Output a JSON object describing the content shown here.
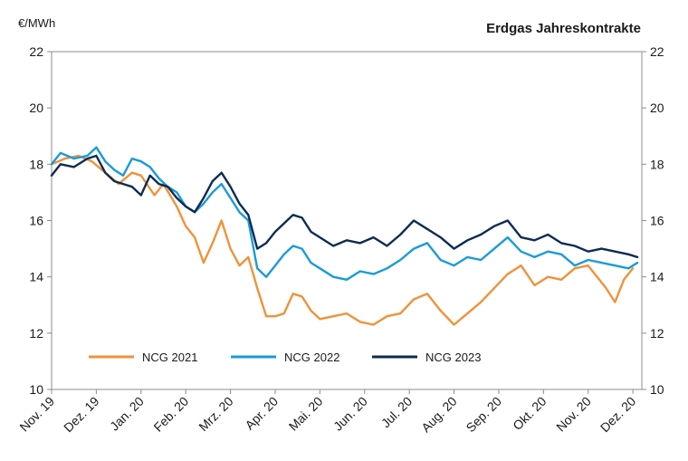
{
  "chart_data": {
    "type": "line",
    "title": "Erdgas Jahreskontrakte",
    "ylabel": "€/MWh",
    "ylim": [
      10,
      22
    ],
    "yticks": [
      10,
      12,
      14,
      16,
      18,
      20,
      22
    ],
    "ytick_labels": [
      "10",
      "12",
      "14",
      "16",
      "18",
      "20",
      "22"
    ],
    "x_range": [
      0,
      13.2
    ],
    "x_ticks": [
      0,
      1,
      2,
      3,
      4,
      5,
      6,
      7,
      8,
      9,
      10,
      11,
      12,
      13
    ],
    "categories": [
      "Nov. 19",
      "Dez. 19",
      "Jan. 20",
      "Feb. 20",
      "Mrz. 20",
      "Apr. 20",
      "Mai. 20",
      "Jun. 20",
      "Jul. 20",
      "Aug. 20",
      "Sep. 20",
      "Okt. 20",
      "Nov. 20",
      "Dez. 20"
    ],
    "grid": false,
    "legend_position": "bottom-left",
    "series": [
      {
        "name": "NCG 2021",
        "color": "#f0923a",
        "x": [
          0,
          0.3,
          0.6,
          0.9,
          1.2,
          1.5,
          1.8,
          2.0,
          2.3,
          2.5,
          2.8,
          3.0,
          3.2,
          3.4,
          3.6,
          3.8,
          4.0,
          4.2,
          4.4,
          4.6,
          4.8,
          5.0,
          5.2,
          5.4,
          5.6,
          5.8,
          6.0,
          6.3,
          6.6,
          6.9,
          7.2,
          7.5,
          7.8,
          8.1,
          8.4,
          8.7,
          9.0,
          9.3,
          9.6,
          9.9,
          10.2,
          10.5,
          10.8,
          11.1,
          11.4,
          11.7,
          12.0,
          12.2,
          12.4,
          12.6,
          12.8,
          13.0
        ],
        "values": [
          18.0,
          18.2,
          18.3,
          18.1,
          17.7,
          17.3,
          17.7,
          17.6,
          16.9,
          17.3,
          16.5,
          15.8,
          15.4,
          14.5,
          15.2,
          16.0,
          15.0,
          14.4,
          14.7,
          13.6,
          12.6,
          12.6,
          12.7,
          13.4,
          13.3,
          12.8,
          12.5,
          12.6,
          12.7,
          12.4,
          12.3,
          12.6,
          12.7,
          13.2,
          13.4,
          12.8,
          12.3,
          12.7,
          13.1,
          13.6,
          14.1,
          14.4,
          13.7,
          14.0,
          13.9,
          14.3,
          14.4,
          14.0,
          13.6,
          13.1,
          13.9,
          14.3
        ]
      },
      {
        "name": "NCG 2022",
        "color": "#1a9bd7",
        "x": [
          0,
          0.2,
          0.5,
          0.8,
          1.0,
          1.2,
          1.4,
          1.6,
          1.8,
          2.0,
          2.2,
          2.4,
          2.6,
          2.8,
          3.0,
          3.2,
          3.4,
          3.6,
          3.8,
          4.0,
          4.2,
          4.4,
          4.6,
          4.8,
          5.0,
          5.2,
          5.4,
          5.6,
          5.8,
          6.0,
          6.3,
          6.6,
          6.9,
          7.2,
          7.5,
          7.8,
          8.1,
          8.4,
          8.7,
          9.0,
          9.3,
          9.6,
          9.9,
          10.2,
          10.5,
          10.8,
          11.1,
          11.4,
          11.7,
          12.0,
          12.3,
          12.6,
          12.9,
          13.1
        ],
        "values": [
          18.0,
          18.4,
          18.2,
          18.3,
          18.6,
          18.1,
          17.8,
          17.6,
          18.2,
          18.1,
          17.9,
          17.5,
          17.2,
          17.0,
          16.5,
          16.3,
          16.6,
          17.0,
          17.3,
          16.8,
          16.3,
          16.0,
          14.3,
          14.0,
          14.4,
          14.8,
          15.1,
          15.0,
          14.5,
          14.3,
          14.0,
          13.9,
          14.2,
          14.1,
          14.3,
          14.6,
          15.0,
          15.2,
          14.6,
          14.4,
          14.7,
          14.6,
          15.0,
          15.4,
          14.9,
          14.7,
          14.9,
          14.8,
          14.4,
          14.6,
          14.5,
          14.4,
          14.3,
          14.5
        ]
      },
      {
        "name": "NCG 2023",
        "color": "#0d2b54",
        "x": [
          0,
          0.2,
          0.5,
          0.8,
          1.0,
          1.2,
          1.4,
          1.6,
          1.8,
          2.0,
          2.2,
          2.4,
          2.6,
          2.8,
          3.0,
          3.2,
          3.4,
          3.6,
          3.8,
          4.0,
          4.2,
          4.4,
          4.6,
          4.8,
          5.0,
          5.2,
          5.4,
          5.6,
          5.8,
          6.0,
          6.3,
          6.6,
          6.9,
          7.2,
          7.5,
          7.8,
          8.1,
          8.4,
          8.7,
          9.0,
          9.3,
          9.6,
          9.9,
          10.2,
          10.5,
          10.8,
          11.1,
          11.4,
          11.7,
          12.0,
          12.3,
          12.6,
          12.9,
          13.1
        ],
        "values": [
          17.6,
          18.0,
          17.9,
          18.2,
          18.3,
          17.7,
          17.4,
          17.3,
          17.2,
          16.9,
          17.6,
          17.3,
          17.2,
          16.8,
          16.5,
          16.3,
          16.8,
          17.4,
          17.7,
          17.2,
          16.6,
          16.2,
          15.0,
          15.2,
          15.6,
          15.9,
          16.2,
          16.1,
          15.6,
          15.4,
          15.1,
          15.3,
          15.2,
          15.4,
          15.1,
          15.5,
          16.0,
          15.7,
          15.4,
          15.0,
          15.3,
          15.5,
          15.8,
          16.0,
          15.4,
          15.3,
          15.5,
          15.2,
          15.1,
          14.9,
          15.0,
          14.9,
          14.8,
          14.7
        ]
      }
    ]
  }
}
